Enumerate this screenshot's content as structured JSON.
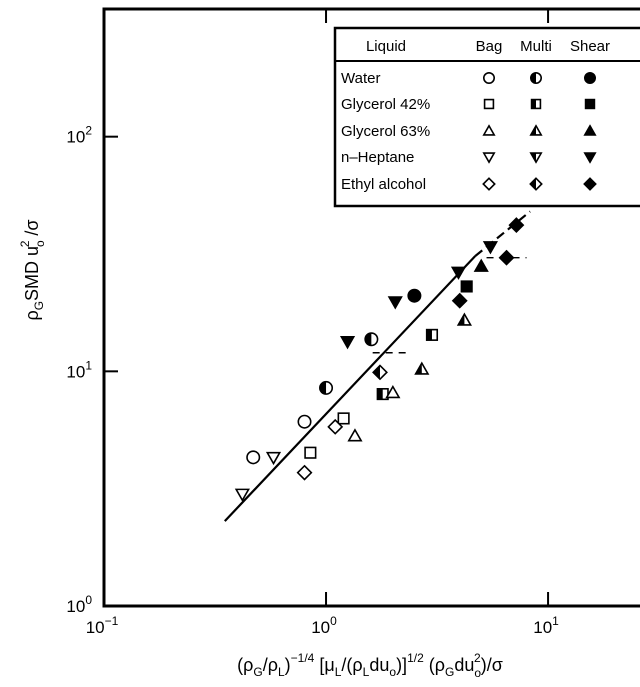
{
  "chart_data": {
    "type": "scatter",
    "xscale": "log",
    "yscale": "log",
    "xlim": [
      0.1,
      30
    ],
    "ylim": [
      1,
      350
    ],
    "x_ticks": [
      {
        "value": 0.1,
        "base": "10",
        "exp": "−1"
      },
      {
        "value": 1,
        "base": "10",
        "exp": "0"
      },
      {
        "value": 10,
        "base": "10",
        "exp": "1"
      }
    ],
    "y_ticks": [
      {
        "value": 1,
        "base": "10",
        "exp": "0"
      },
      {
        "value": 10,
        "base": "10",
        "exp": "1"
      },
      {
        "value": 100,
        "base": "10",
        "exp": "2"
      }
    ],
    "xlabel": "(ρG/ρL)−1/4 [μL/(ρLduo)]1/2 (ρGduo2)/σ",
    "ylabel": "ρGSMD uo2 /σ",
    "legend": {
      "placement": "top-right",
      "headers": [
        "Liquid",
        "Bag",
        "Multi",
        "Shear"
      ],
      "rows": [
        {
          "liquid": "Water",
          "shape": "circle"
        },
        {
          "liquid": "Glycerol 42%",
          "shape": "square"
        },
        {
          "liquid": "Glycerol 63%",
          "shape": "triangle-up"
        },
        {
          "liquid": "n–Heptane",
          "shape": "triangle-down"
        },
        {
          "liquid": "Ethyl alcohol",
          "shape": "diamond"
        }
      ]
    },
    "fit_line": {
      "solid": [
        [
          0.35,
          2.3
        ],
        [
          4.7,
          31
        ]
      ],
      "dashed": [
        [
          4.7,
          31
        ],
        [
          8.3,
          48
        ]
      ]
    },
    "error_bars": [
      {
        "x": 1.95,
        "y": 12,
        "halfwidth_decades": 0.08
      },
      {
        "x": 6.5,
        "y": 30.5,
        "halfwidth_decades": 0.09
      }
    ],
    "points": [
      {
        "liquid": "Water",
        "regime": "Bag",
        "x": 0.47,
        "y": 4.3
      },
      {
        "liquid": "Water",
        "regime": "Bag",
        "x": 0.8,
        "y": 6.1
      },
      {
        "liquid": "Water",
        "regime": "Multi",
        "x": 1.0,
        "y": 8.5
      },
      {
        "liquid": "Water",
        "regime": "Multi",
        "x": 1.6,
        "y": 13.7
      },
      {
        "liquid": "Water",
        "regime": "Shear",
        "x": 2.5,
        "y": 21
      },
      {
        "liquid": "Glycerol 42%",
        "regime": "Bag",
        "x": 0.85,
        "y": 4.5
      },
      {
        "liquid": "Glycerol 42%",
        "regime": "Bag",
        "x": 1.2,
        "y": 6.3
      },
      {
        "liquid": "Glycerol 42%",
        "regime": "Multi",
        "x": 1.8,
        "y": 8.0
      },
      {
        "liquid": "Glycerol 42%",
        "regime": "Multi",
        "x": 3.0,
        "y": 14.3
      },
      {
        "liquid": "Glycerol 42%",
        "regime": "Shear",
        "x": 4.3,
        "y": 23
      },
      {
        "liquid": "Glycerol 63%",
        "regime": "Bag",
        "x": 1.35,
        "y": 5.3
      },
      {
        "liquid": "Glycerol 63%",
        "regime": "Bag",
        "x": 2.0,
        "y": 8.1
      },
      {
        "liquid": "Glycerol 63%",
        "regime": "Multi",
        "x": 2.7,
        "y": 10.2
      },
      {
        "liquid": "Glycerol 63%",
        "regime": "Multi",
        "x": 4.2,
        "y": 16.5
      },
      {
        "liquid": "Glycerol 63%",
        "regime": "Shear",
        "x": 5.0,
        "y": 28
      },
      {
        "liquid": "n–Heptane",
        "regime": "Bag",
        "x": 0.42,
        "y": 3.0
      },
      {
        "liquid": "n–Heptane",
        "regime": "Bag",
        "x": 0.58,
        "y": 4.3
      },
      {
        "liquid": "n–Heptane",
        "regime": "Shear",
        "x": 1.25,
        "y": 13.4
      },
      {
        "liquid": "n–Heptane",
        "regime": "Shear",
        "x": 2.05,
        "y": 19.8
      },
      {
        "liquid": "n–Heptane",
        "regime": "Shear",
        "x": 3.95,
        "y": 26.5
      },
      {
        "liquid": "n–Heptane",
        "regime": "Shear",
        "x": 5.5,
        "y": 34
      },
      {
        "liquid": "Ethyl alcohol",
        "regime": "Bag",
        "x": 0.8,
        "y": 3.7
      },
      {
        "liquid": "Ethyl alcohol",
        "regime": "Bag",
        "x": 1.1,
        "y": 5.8
      },
      {
        "liquid": "Ethyl alcohol",
        "regime": "Multi",
        "x": 1.75,
        "y": 9.9
      },
      {
        "liquid": "Ethyl alcohol",
        "regime": "Shear",
        "x": 4.0,
        "y": 20
      },
      {
        "liquid": "Ethyl alcohol",
        "regime": "Shear",
        "x": 6.5,
        "y": 30.5
      },
      {
        "liquid": "Ethyl alcohol",
        "regime": "Shear",
        "x": 7.2,
        "y": 42
      }
    ]
  }
}
